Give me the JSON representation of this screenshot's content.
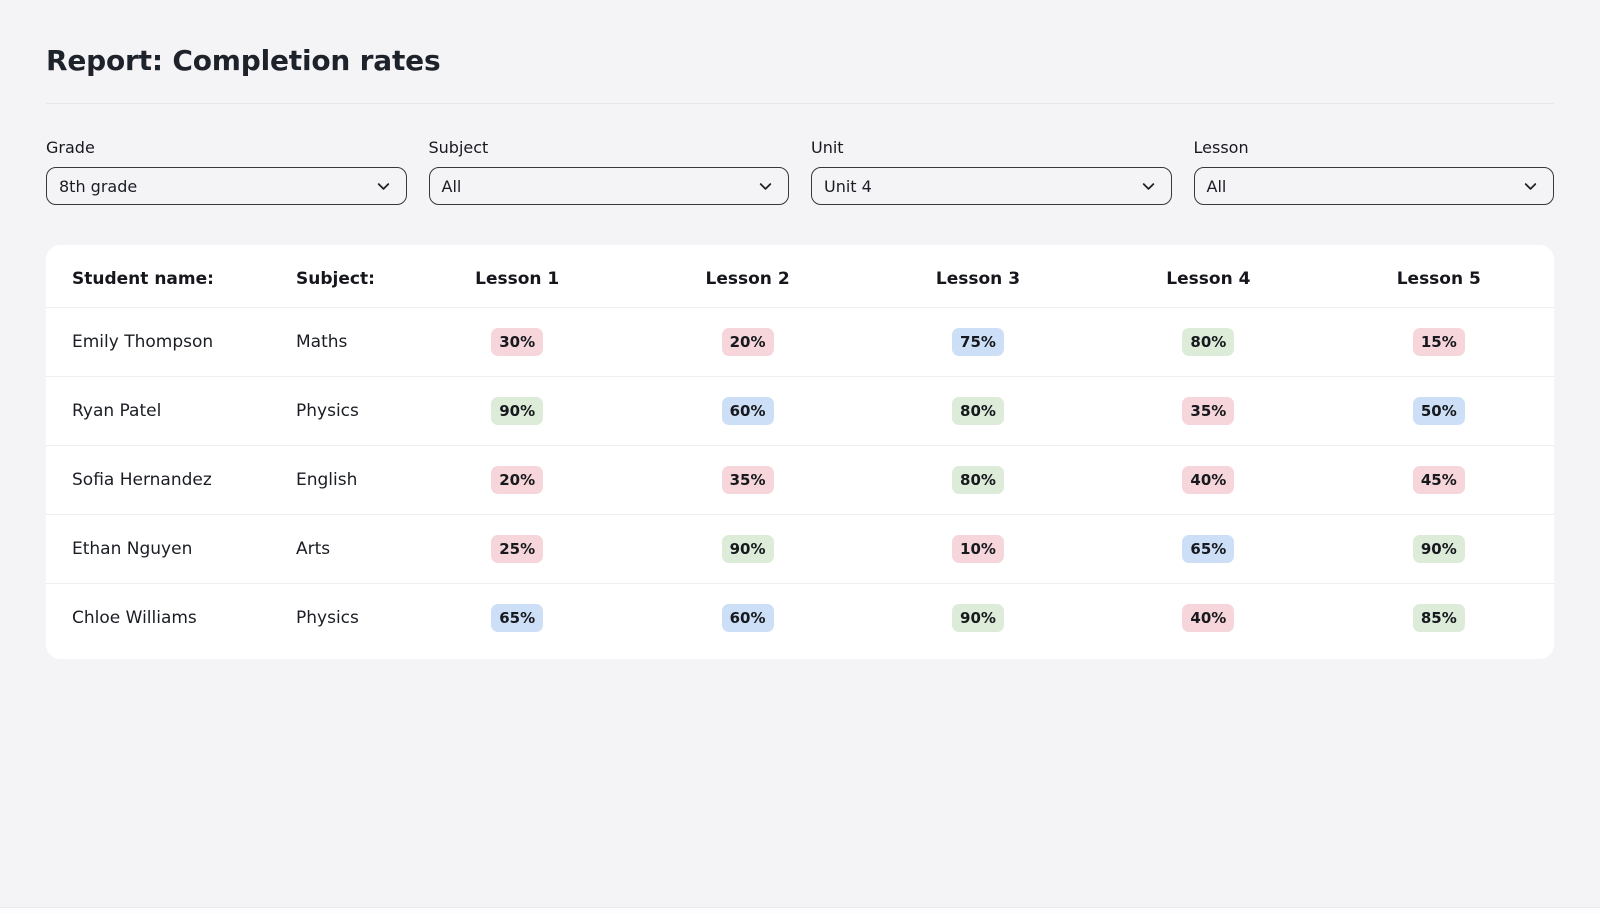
{
  "page": {
    "title": "Report: Completion rates",
    "background_color": "#f4f4f6"
  },
  "filters": [
    {
      "id": "grade",
      "label": "Grade",
      "value": "8th grade"
    },
    {
      "id": "subject",
      "label": "Subject",
      "value": "All"
    },
    {
      "id": "unit",
      "label": "Unit",
      "value": "Unit 4"
    },
    {
      "id": "lesson",
      "label": "Lesson",
      "value": "All"
    }
  ],
  "table": {
    "columns": [
      {
        "label": "Student name:",
        "align": "left"
      },
      {
        "label": "Subject:",
        "align": "left"
      },
      {
        "label": "Lesson 1",
        "align": "center"
      },
      {
        "label": "Lesson 2",
        "align": "center"
      },
      {
        "label": "Lesson 3",
        "align": "center"
      },
      {
        "label": "Lesson 4",
        "align": "center"
      },
      {
        "label": "Lesson 5",
        "align": "center"
      }
    ],
    "rows": [
      {
        "name": "Emily Thompson",
        "subject": "Maths",
        "lessons": [
          {
            "value": "30%",
            "tone": "red"
          },
          {
            "value": "20%",
            "tone": "red"
          },
          {
            "value": "75%",
            "tone": "blue"
          },
          {
            "value": "80%",
            "tone": "green"
          },
          {
            "value": "15%",
            "tone": "red"
          }
        ]
      },
      {
        "name": "Ryan Patel",
        "subject": "Physics",
        "lessons": [
          {
            "value": "90%",
            "tone": "green"
          },
          {
            "value": "60%",
            "tone": "blue"
          },
          {
            "value": "80%",
            "tone": "green"
          },
          {
            "value": "35%",
            "tone": "red"
          },
          {
            "value": "50%",
            "tone": "blue"
          }
        ]
      },
      {
        "name": "Sofia Hernandez",
        "subject": "English",
        "lessons": [
          {
            "value": "20%",
            "tone": "red"
          },
          {
            "value": "35%",
            "tone": "red"
          },
          {
            "value": "80%",
            "tone": "green"
          },
          {
            "value": "40%",
            "tone": "red"
          },
          {
            "value": "45%",
            "tone": "red"
          }
        ]
      },
      {
        "name": "Ethan Nguyen",
        "subject": "Arts",
        "lessons": [
          {
            "value": "25%",
            "tone": "red"
          },
          {
            "value": "90%",
            "tone": "green"
          },
          {
            "value": "10%",
            "tone": "red"
          },
          {
            "value": "65%",
            "tone": "blue"
          },
          {
            "value": "90%",
            "tone": "green"
          }
        ]
      },
      {
        "name": "Chloe Williams",
        "subject": "Physics",
        "lessons": [
          {
            "value": "65%",
            "tone": "blue"
          },
          {
            "value": "60%",
            "tone": "blue"
          },
          {
            "value": "90%",
            "tone": "green"
          },
          {
            "value": "40%",
            "tone": "red"
          },
          {
            "value": "85%",
            "tone": "green"
          }
        ]
      }
    ]
  },
  "colors": {
    "badge_red": "#f6d6da",
    "badge_green": "#dcecd8",
    "badge_blue": "#cddff6",
    "badge_text": "#17191e"
  },
  "icons": {
    "dropdown": "chevron-down"
  }
}
